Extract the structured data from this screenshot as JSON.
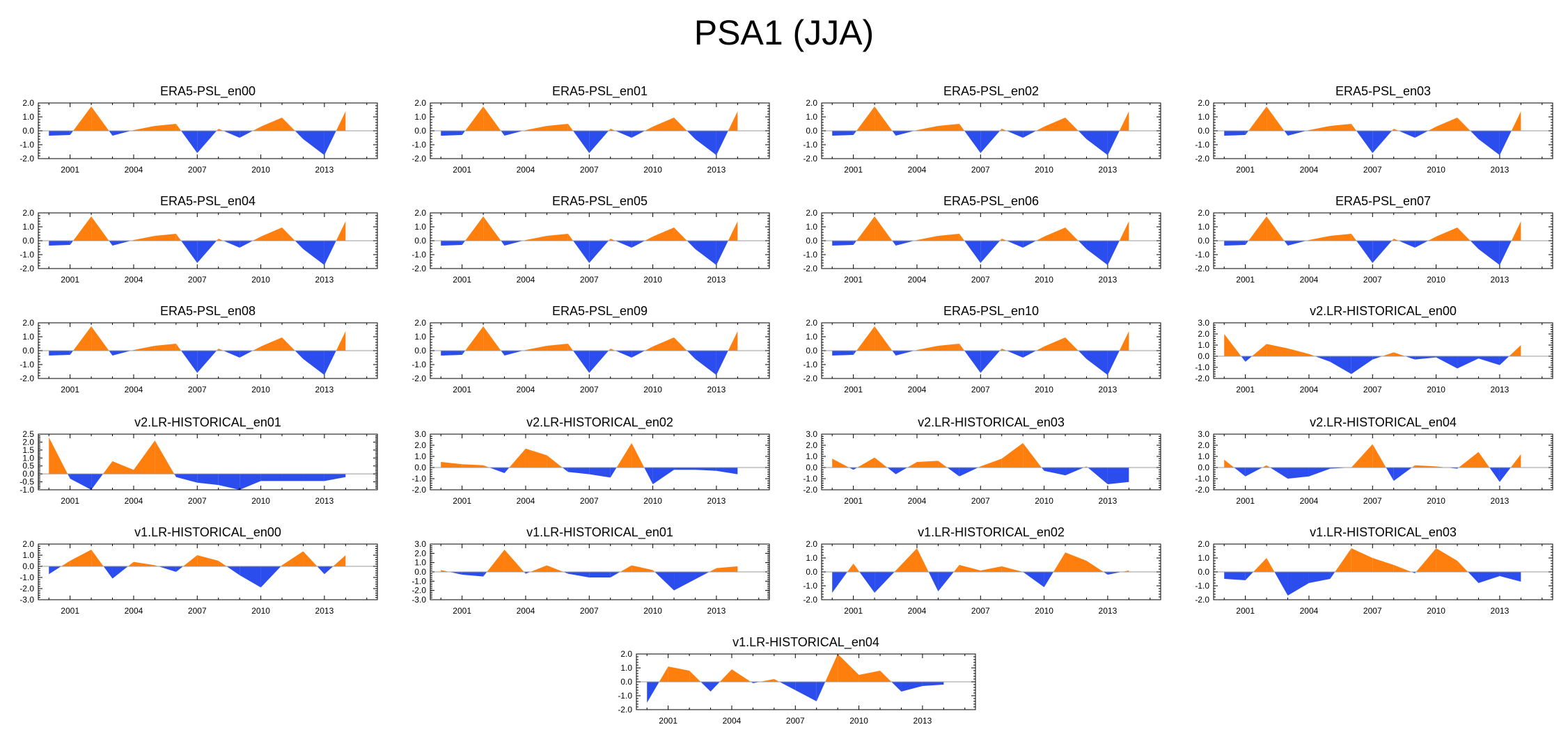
{
  "title": "PSA1 (JJA)",
  "colors": {
    "positive": "#ff7f0e",
    "negative": "#2b4dee",
    "zero_line": "#999999",
    "axis": "#000000"
  },
  "chart_data": [
    {
      "type": "area",
      "title": "ERA5-PSL_en00",
      "x": [
        2000,
        2001,
        2002,
        2003,
        2004,
        2005,
        2006,
        2007,
        2008,
        2009,
        2010,
        2011,
        2012,
        2013,
        2014
      ],
      "values": [
        -0.35,
        -0.3,
        1.75,
        -0.35,
        0.05,
        0.35,
        0.5,
        -1.6,
        0.15,
        -0.5,
        0.3,
        0.95,
        -0.6,
        -1.75,
        1.4
      ],
      "ylim": [
        -2,
        2
      ],
      "yticks": [
        "2.0",
        "1.0",
        "0.0",
        "-1.0",
        "-2.0"
      ],
      "xticks": [
        "2001",
        "2004",
        "2007",
        "2010",
        "2013"
      ]
    },
    {
      "type": "area",
      "title": "ERA5-PSL_en01",
      "x": [
        2000,
        2001,
        2002,
        2003,
        2004,
        2005,
        2006,
        2007,
        2008,
        2009,
        2010,
        2011,
        2012,
        2013,
        2014
      ],
      "values": [
        -0.35,
        -0.3,
        1.75,
        -0.35,
        0.05,
        0.35,
        0.5,
        -1.6,
        0.15,
        -0.5,
        0.3,
        0.95,
        -0.6,
        -1.75,
        1.4
      ],
      "ylim": [
        -2,
        2
      ],
      "yticks": [
        "2.0",
        "1.0",
        "0.0",
        "-1.0",
        "-2.0"
      ],
      "xticks": [
        "2001",
        "2004",
        "2007",
        "2010",
        "2013"
      ]
    },
    {
      "type": "area",
      "title": "ERA5-PSL_en02",
      "x": [
        2000,
        2001,
        2002,
        2003,
        2004,
        2005,
        2006,
        2007,
        2008,
        2009,
        2010,
        2011,
        2012,
        2013,
        2014
      ],
      "values": [
        -0.35,
        -0.3,
        1.75,
        -0.35,
        0.05,
        0.35,
        0.5,
        -1.6,
        0.15,
        -0.5,
        0.3,
        0.95,
        -0.6,
        -1.75,
        1.4
      ],
      "ylim": [
        -2,
        2
      ],
      "yticks": [
        "2.0",
        "1.0",
        "0.0",
        "-1.0",
        "-2.0"
      ],
      "xticks": [
        "2001",
        "2004",
        "2007",
        "2010",
        "2013"
      ]
    },
    {
      "type": "area",
      "title": "ERA5-PSL_en03",
      "x": [
        2000,
        2001,
        2002,
        2003,
        2004,
        2005,
        2006,
        2007,
        2008,
        2009,
        2010,
        2011,
        2012,
        2013,
        2014
      ],
      "values": [
        -0.35,
        -0.3,
        1.75,
        -0.35,
        0.05,
        0.35,
        0.5,
        -1.6,
        0.15,
        -0.5,
        0.3,
        0.95,
        -0.6,
        -1.75,
        1.4
      ],
      "ylim": [
        -2,
        2
      ],
      "yticks": [
        "2.0",
        "1.0",
        "0.0",
        "-1.0",
        "-2.0"
      ],
      "xticks": [
        "2001",
        "2004",
        "2007",
        "2010",
        "2013"
      ]
    },
    {
      "type": "area",
      "title": "ERA5-PSL_en04",
      "x": [
        2000,
        2001,
        2002,
        2003,
        2004,
        2005,
        2006,
        2007,
        2008,
        2009,
        2010,
        2011,
        2012,
        2013,
        2014
      ],
      "values": [
        -0.35,
        -0.3,
        1.75,
        -0.35,
        0.05,
        0.35,
        0.5,
        -1.6,
        0.15,
        -0.5,
        0.3,
        0.95,
        -0.6,
        -1.75,
        1.4
      ],
      "ylim": [
        -2,
        2
      ],
      "yticks": [
        "2.0",
        "1.0",
        "0.0",
        "-1.0",
        "-2.0"
      ],
      "xticks": [
        "2001",
        "2004",
        "2007",
        "2010",
        "2013"
      ]
    },
    {
      "type": "area",
      "title": "ERA5-PSL_en05",
      "x": [
        2000,
        2001,
        2002,
        2003,
        2004,
        2005,
        2006,
        2007,
        2008,
        2009,
        2010,
        2011,
        2012,
        2013,
        2014
      ],
      "values": [
        -0.35,
        -0.3,
        1.75,
        -0.35,
        0.05,
        0.35,
        0.5,
        -1.6,
        0.15,
        -0.5,
        0.3,
        0.95,
        -0.6,
        -1.75,
        1.4
      ],
      "ylim": [
        -2,
        2
      ],
      "yticks": [
        "2.0",
        "1.0",
        "0.0",
        "-1.0",
        "-2.0"
      ],
      "xticks": [
        "2001",
        "2004",
        "2007",
        "2010",
        "2013"
      ]
    },
    {
      "type": "area",
      "title": "ERA5-PSL_en06",
      "x": [
        2000,
        2001,
        2002,
        2003,
        2004,
        2005,
        2006,
        2007,
        2008,
        2009,
        2010,
        2011,
        2012,
        2013,
        2014
      ],
      "values": [
        -0.35,
        -0.3,
        1.75,
        -0.35,
        0.05,
        0.35,
        0.5,
        -1.6,
        0.15,
        -0.5,
        0.3,
        0.95,
        -0.6,
        -1.75,
        1.4
      ],
      "ylim": [
        -2,
        2
      ],
      "yticks": [
        "2.0",
        "1.0",
        "0.0",
        "-1.0",
        "-2.0"
      ],
      "xticks": [
        "2001",
        "2004",
        "2007",
        "2010",
        "2013"
      ]
    },
    {
      "type": "area",
      "title": "ERA5-PSL_en07",
      "x": [
        2000,
        2001,
        2002,
        2003,
        2004,
        2005,
        2006,
        2007,
        2008,
        2009,
        2010,
        2011,
        2012,
        2013,
        2014
      ],
      "values": [
        -0.35,
        -0.3,
        1.75,
        -0.35,
        0.05,
        0.35,
        0.5,
        -1.6,
        0.15,
        -0.5,
        0.3,
        0.95,
        -0.6,
        -1.75,
        1.4
      ],
      "ylim": [
        -2,
        2
      ],
      "yticks": [
        "2.0",
        "1.0",
        "0.0",
        "-1.0",
        "-2.0"
      ],
      "xticks": [
        "2001",
        "2004",
        "2007",
        "2010",
        "2013"
      ]
    },
    {
      "type": "area",
      "title": "ERA5-PSL_en08",
      "x": [
        2000,
        2001,
        2002,
        2003,
        2004,
        2005,
        2006,
        2007,
        2008,
        2009,
        2010,
        2011,
        2012,
        2013,
        2014
      ],
      "values": [
        -0.35,
        -0.3,
        1.75,
        -0.35,
        0.05,
        0.35,
        0.5,
        -1.6,
        0.15,
        -0.5,
        0.3,
        0.95,
        -0.6,
        -1.75,
        1.4
      ],
      "ylim": [
        -2,
        2
      ],
      "yticks": [
        "2.0",
        "1.0",
        "0.0",
        "-1.0",
        "-2.0"
      ],
      "xticks": [
        "2001",
        "2004",
        "2007",
        "2010",
        "2013"
      ]
    },
    {
      "type": "area",
      "title": "ERA5-PSL_en09",
      "x": [
        2000,
        2001,
        2002,
        2003,
        2004,
        2005,
        2006,
        2007,
        2008,
        2009,
        2010,
        2011,
        2012,
        2013,
        2014
      ],
      "values": [
        -0.35,
        -0.3,
        1.75,
        -0.35,
        0.05,
        0.35,
        0.5,
        -1.6,
        0.15,
        -0.5,
        0.3,
        0.95,
        -0.6,
        -1.75,
        1.4
      ],
      "ylim": [
        -2,
        2
      ],
      "yticks": [
        "2.0",
        "1.0",
        "0.0",
        "-1.0",
        "-2.0"
      ],
      "xticks": [
        "2001",
        "2004",
        "2007",
        "2010",
        "2013"
      ]
    },
    {
      "type": "area",
      "title": "ERA5-PSL_en10",
      "x": [
        2000,
        2001,
        2002,
        2003,
        2004,
        2005,
        2006,
        2007,
        2008,
        2009,
        2010,
        2011,
        2012,
        2013,
        2014
      ],
      "values": [
        -0.35,
        -0.3,
        1.75,
        -0.35,
        0.05,
        0.35,
        0.5,
        -1.6,
        0.15,
        -0.5,
        0.3,
        0.95,
        -0.6,
        -1.75,
        1.4
      ],
      "ylim": [
        -2,
        2
      ],
      "yticks": [
        "2.0",
        "1.0",
        "0.0",
        "-1.0",
        "-2.0"
      ],
      "xticks": [
        "2001",
        "2004",
        "2007",
        "2010",
        "2013"
      ]
    },
    {
      "type": "area",
      "title": "v2.LR-HISTORICAL_en00",
      "x": [
        2000,
        2001,
        2002,
        2003,
        2004,
        2005,
        2006,
        2007,
        2008,
        2009,
        2010,
        2011,
        2012,
        2013,
        2014
      ],
      "values": [
        2.0,
        -0.5,
        1.1,
        0.7,
        0.2,
        -0.5,
        -1.6,
        -0.3,
        0.35,
        -0.3,
        -0.1,
        -1.1,
        -0.2,
        -0.8,
        1.0
      ],
      "ylim": [
        -2,
        3
      ],
      "yticks": [
        "3.0",
        "2.0",
        "1.0",
        "0.0",
        "-1.0",
        "-2.0"
      ],
      "xticks": [
        "2001",
        "2004",
        "2007",
        "2010",
        "2013"
      ]
    },
    {
      "type": "area",
      "title": "v2.LR-HISTORICAL_en01",
      "x": [
        2000,
        2001,
        2002,
        2003,
        2004,
        2005,
        2006,
        2007,
        2008,
        2009,
        2010,
        2011,
        2012,
        2013,
        2014
      ],
      "values": [
        2.3,
        -0.3,
        -1.0,
        0.8,
        0.25,
        2.1,
        -0.2,
        -0.55,
        -0.7,
        -1.0,
        -0.45,
        -0.45,
        -0.45,
        -0.45,
        -0.2
      ],
      "ylim": [
        -1,
        2.5
      ],
      "yticks": [
        "2.5",
        "2.0",
        "1.5",
        "1.0",
        "0.5",
        "0.0",
        "-0.5",
        "-1.0"
      ],
      "xticks": [
        "2001",
        "2004",
        "2007",
        "2010",
        "2013"
      ]
    },
    {
      "type": "area",
      "title": "v2.LR-HISTORICAL_en02",
      "x": [
        2000,
        2001,
        2002,
        2003,
        2004,
        2005,
        2006,
        2007,
        2008,
        2009,
        2010,
        2011,
        2012,
        2013,
        2014
      ],
      "values": [
        0.5,
        0.3,
        0.2,
        -0.5,
        1.7,
        1.1,
        -0.4,
        -0.6,
        -0.9,
        2.2,
        -1.5,
        -0.2,
        -0.2,
        -0.3,
        -0.6
      ],
      "ylim": [
        -2,
        3
      ],
      "yticks": [
        "3.0",
        "2.0",
        "1.0",
        "0.0",
        "-1.0",
        "-2.0"
      ],
      "xticks": [
        "2001",
        "2004",
        "2007",
        "2010",
        "2013"
      ]
    },
    {
      "type": "area",
      "title": "v2.LR-HISTORICAL_en03",
      "x": [
        2000,
        2001,
        2002,
        2003,
        2004,
        2005,
        2006,
        2007,
        2008,
        2009,
        2010,
        2011,
        2012,
        2013,
        2014
      ],
      "values": [
        0.8,
        -0.2,
        0.9,
        -0.6,
        0.5,
        0.6,
        -0.8,
        0.1,
        0.8,
        2.2,
        -0.3,
        -0.7,
        0.1,
        -1.5,
        -1.3
      ],
      "ylim": [
        -2,
        3
      ],
      "yticks": [
        "3.0",
        "2.0",
        "1.0",
        "0.0",
        "-1.0",
        "-2.0"
      ],
      "xticks": [
        "2001",
        "2004",
        "2007",
        "2010",
        "2013"
      ]
    },
    {
      "type": "area",
      "title": "v2.LR-HISTORICAL_en04",
      "x": [
        2000,
        2001,
        2002,
        2003,
        2004,
        2005,
        2006,
        2007,
        2008,
        2009,
        2010,
        2011,
        2012,
        2013,
        2014
      ],
      "values": [
        0.7,
        -0.8,
        0.2,
        -1.0,
        -0.8,
        -0.1,
        0.0,
        2.1,
        -1.2,
        0.2,
        0.1,
        -0.1,
        1.4,
        -1.3,
        1.2
      ],
      "ylim": [
        -2,
        3
      ],
      "yticks": [
        "3.0",
        "2.0",
        "1.0",
        "0.0",
        "-1.0",
        "-2.0"
      ],
      "xticks": [
        "2001",
        "2004",
        "2007",
        "2010",
        "2013"
      ]
    },
    {
      "type": "area",
      "title": "v1.LR-HISTORICAL_en00",
      "x": [
        2000,
        2001,
        2002,
        2003,
        2004,
        2005,
        2006,
        2007,
        2008,
        2009,
        2010,
        2011,
        2012,
        2013,
        2014
      ],
      "values": [
        -0.7,
        0.5,
        1.5,
        -1.1,
        0.4,
        0.1,
        -0.5,
        1.0,
        0.5,
        -0.8,
        -1.9,
        0.1,
        1.35,
        -0.7,
        1.0
      ],
      "ylim": [
        -3,
        2
      ],
      "yticks": [
        "2.0",
        "1.0",
        "0.0",
        "-1.0",
        "-2.0",
        "-3.0"
      ],
      "xticks": [
        "2001",
        "2004",
        "2007",
        "2010",
        "2013"
      ]
    },
    {
      "type": "area",
      "title": "v1.LR-HISTORICAL_en01",
      "x": [
        2000,
        2001,
        2002,
        2003,
        2004,
        2005,
        2006,
        2007,
        2008,
        2009,
        2010,
        2011,
        2012,
        2013,
        2014
      ],
      "values": [
        0.2,
        -0.3,
        -0.5,
        2.4,
        -0.2,
        0.7,
        -0.2,
        -0.6,
        -0.6,
        0.7,
        0.2,
        -2.0,
        -0.8,
        0.4,
        0.6
      ],
      "ylim": [
        -3,
        3
      ],
      "yticks": [
        "3.0",
        "2.0",
        "1.0",
        "0.0",
        "-1.0",
        "-2.0",
        "-3.0"
      ],
      "xticks": [
        "2001",
        "2004",
        "2007",
        "2010",
        "2013"
      ]
    },
    {
      "type": "area",
      "title": "v1.LR-HISTORICAL_en02",
      "x": [
        2000,
        2001,
        2002,
        2003,
        2004,
        2005,
        2006,
        2007,
        2008,
        2009,
        2010,
        2011,
        2012,
        2013,
        2014
      ],
      "values": [
        -1.5,
        0.6,
        -1.5,
        0.1,
        1.7,
        -1.4,
        0.5,
        0.1,
        0.4,
        0.0,
        -1.1,
        1.4,
        0.8,
        -0.2,
        0.1
      ],
      "ylim": [
        -2,
        2
      ],
      "yticks": [
        "2.0",
        "1.0",
        "0.0",
        "-1.0",
        "-2.0"
      ],
      "xticks": [
        "2001",
        "2004",
        "2007",
        "2010",
        "2013"
      ]
    },
    {
      "type": "area",
      "title": "v1.LR-HISTORICAL_en03",
      "x": [
        2000,
        2001,
        2002,
        2003,
        2004,
        2005,
        2006,
        2007,
        2008,
        2009,
        2010,
        2011,
        2012,
        2013,
        2014
      ],
      "values": [
        -0.5,
        -0.6,
        1.0,
        -1.7,
        -0.8,
        -0.5,
        1.7,
        1.0,
        0.5,
        -0.1,
        1.7,
        0.8,
        -0.8,
        -0.3,
        -0.7
      ],
      "ylim": [
        -2,
        2
      ],
      "yticks": [
        "2.0",
        "1.0",
        "0.0",
        "-1.0",
        "-2.0"
      ],
      "xticks": [
        "2001",
        "2004",
        "2007",
        "2010",
        "2013"
      ]
    },
    {
      "type": "area",
      "title": "v1.LR-HISTORICAL_en04",
      "x": [
        2000,
        2001,
        2002,
        2003,
        2004,
        2005,
        2006,
        2007,
        2008,
        2009,
        2010,
        2011,
        2012,
        2013,
        2014
      ],
      "values": [
        -1.5,
        1.1,
        0.8,
        -0.7,
        0.9,
        -0.1,
        0.2,
        -0.6,
        -1.4,
        2.0,
        0.5,
        0.8,
        -0.7,
        -0.3,
        -0.2
      ],
      "ylim": [
        -2,
        2
      ],
      "yticks": [
        "2.0",
        "1.0",
        "0.0",
        "-1.0",
        "-2.0"
      ],
      "xticks": [
        "2001",
        "2004",
        "2007",
        "2010",
        "2013"
      ]
    }
  ]
}
